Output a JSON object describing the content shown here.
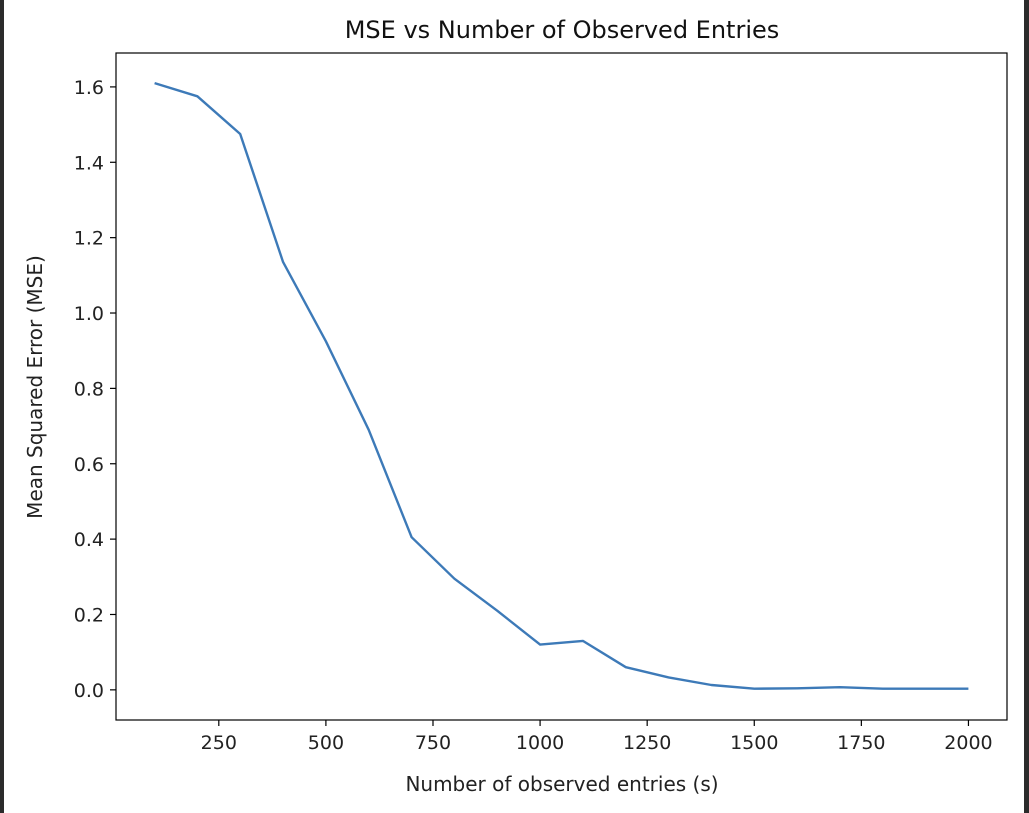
{
  "chart_data": {
    "type": "line",
    "title": "MSE vs Number of Observed Entries",
    "xlabel": "Number of observed entries (s)",
    "ylabel": "Mean Squared Error (MSE)",
    "xlim": [
      10,
      2090
    ],
    "ylim": [
      -0.08,
      1.69
    ],
    "xticks": [
      250,
      500,
      750,
      1000,
      1250,
      1500,
      1750,
      2000
    ],
    "xtick_labels": [
      "250",
      "500",
      "750",
      "1000",
      "1250",
      "1500",
      "1750",
      "2000"
    ],
    "yticks": [
      0.0,
      0.2,
      0.4,
      0.6,
      0.8,
      1.0,
      1.2,
      1.4,
      1.6
    ],
    "ytick_labels": [
      "0.0",
      "0.2",
      "0.4",
      "0.6",
      "0.8",
      "1.0",
      "1.2",
      "1.4",
      "1.6"
    ],
    "grid": false,
    "line_color": "#3d7ab8",
    "series": [
      {
        "x": [
          100,
          200,
          300,
          400,
          500,
          600,
          700,
          800,
          900,
          1000,
          1100,
          1200,
          1300,
          1400,
          1500,
          1600,
          1700,
          1800,
          1900,
          2000
        ],
        "y": [
          1.61,
          1.575,
          1.475,
          1.135,
          0.925,
          0.69,
          0.405,
          0.295,
          0.21,
          0.12,
          0.13,
          0.06,
          0.033,
          0.013,
          0.003,
          0.004,
          0.007,
          0.003,
          0.003,
          0.003
        ]
      }
    ]
  }
}
